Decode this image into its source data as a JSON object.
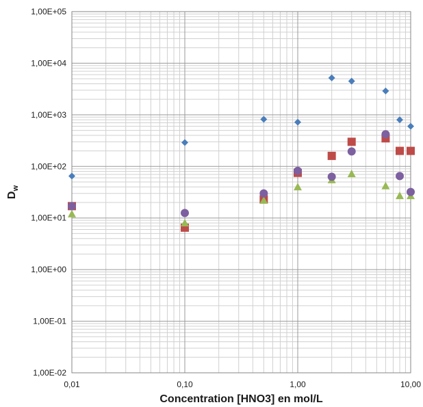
{
  "chart_data": {
    "type": "scatter",
    "xscale": "log",
    "yscale": "log",
    "xlim": [
      0.01,
      10
    ],
    "ylim": [
      0.01,
      100000
    ],
    "xlabel": "Concentration [HNO3] en mol/L",
    "ylabel_main": "D",
    "ylabel_sub": "w",
    "x_ticks": [
      {
        "value": 0.01,
        "label": "0,01"
      },
      {
        "value": 0.1,
        "label": "0,10"
      },
      {
        "value": 1,
        "label": "1,00"
      },
      {
        "value": 10,
        "label": "10,00"
      }
    ],
    "y_ticks": [
      {
        "value": 0.01,
        "label": "1,00E-02"
      },
      {
        "value": 0.1,
        "label": "1,00E-01"
      },
      {
        "value": 1,
        "label": "1,00E+00"
      },
      {
        "value": 10,
        "label": "1,00E+01"
      },
      {
        "value": 100,
        "label": "1,00E+02"
      },
      {
        "value": 1000,
        "label": "1,00E+03"
      },
      {
        "value": 10000,
        "label": "1,00E+04"
      },
      {
        "value": 100000,
        "label": "1,00E+05"
      }
    ],
    "grid": true,
    "legend": "none",
    "series": [
      {
        "marker": "diamond",
        "color": "#4a7ebb",
        "x": [
          0.01,
          0.1,
          0.5,
          1,
          2,
          3,
          6,
          8,
          10
        ],
        "y": [
          65,
          290,
          820,
          720,
          5200,
          4500,
          2900,
          800,
          600
        ]
      },
      {
        "marker": "square",
        "color": "#be4b48",
        "x": [
          0.01,
          0.1,
          0.5,
          1,
          2,
          3,
          6,
          8,
          10
        ],
        "y": [
          17,
          6.5,
          23,
          75,
          160,
          300,
          350,
          200,
          200
        ]
      },
      {
        "marker": "triangle",
        "color": "#98b954",
        "x": [
          0.01,
          0.1,
          0.5,
          1,
          2,
          3,
          6,
          8,
          10
        ],
        "y": [
          12,
          8,
          22,
          40,
          55,
          72,
          42,
          27,
          27
        ]
      },
      {
        "marker": "circle",
        "color": "#7d60a0",
        "x": [
          0.01,
          0.1,
          0.5,
          1,
          2,
          3,
          6,
          8,
          10
        ],
        "y": [
          17,
          12.5,
          30,
          82,
          63,
          195,
          420,
          65,
          32
        ]
      }
    ]
  }
}
